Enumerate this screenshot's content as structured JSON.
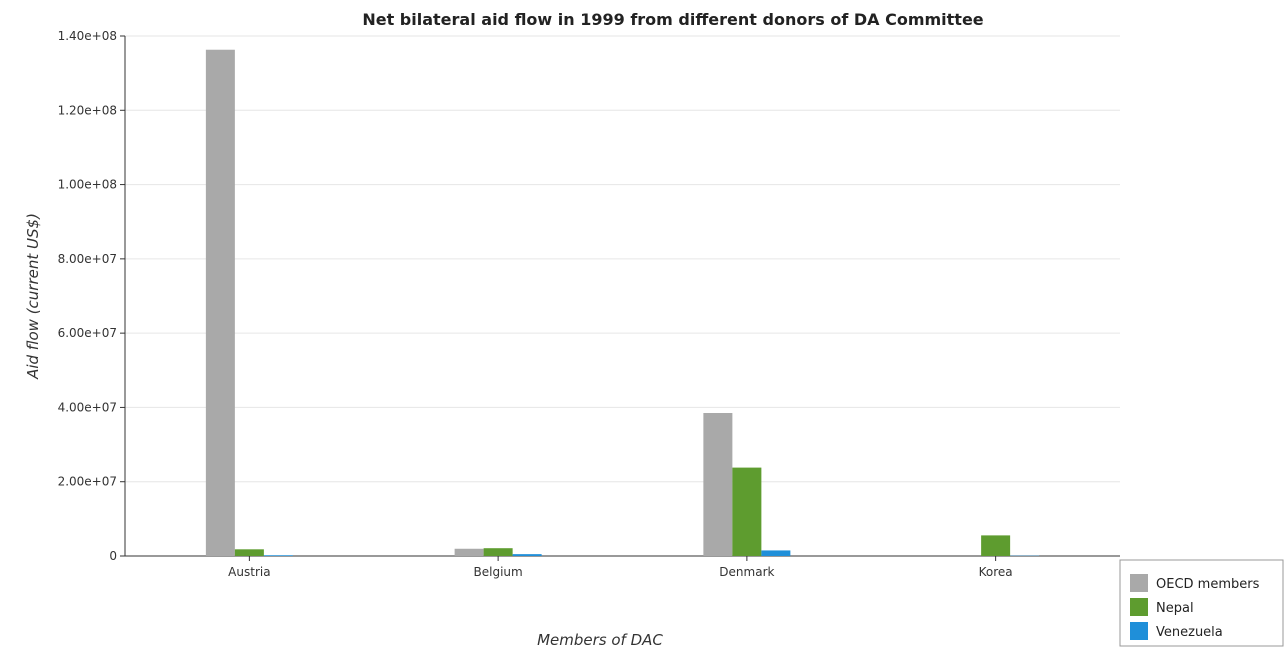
{
  "chart_data": {
    "type": "bar",
    "title": "Net bilateral aid flow in 1999 from different donors of DA Committee",
    "xlabel": "Members of DAC",
    "ylabel": "Aid flow (current US$)",
    "categories": [
      "Austria",
      "Belgium",
      "Denmark",
      "Korea"
    ],
    "series": [
      {
        "name": "OECD members",
        "color": "#a9a9a9",
        "values": [
          136300000,
          1950000,
          38500000,
          0
        ]
      },
      {
        "name": "Nepal",
        "color": "#5e9c2f",
        "values": [
          1800000,
          2100000,
          23800000,
          5550000
        ]
      },
      {
        "name": "Venezuela",
        "color": "#1f8fd9",
        "values": [
          200000,
          500000,
          1500000,
          80000
        ]
      }
    ],
    "ylim": [
      0,
      140000000
    ],
    "yticks": [
      0,
      20000000,
      40000000,
      60000000,
      80000000,
      100000000,
      120000000,
      140000000
    ],
    "ytick_labels": [
      "0",
      "2.00e+07",
      "4.00e+07",
      "6.00e+07",
      "8.00e+07",
      "1.00e+08",
      "1.20e+08",
      "1.40e+08"
    ],
    "grid": true,
    "legend_position": "bottom-right"
  }
}
